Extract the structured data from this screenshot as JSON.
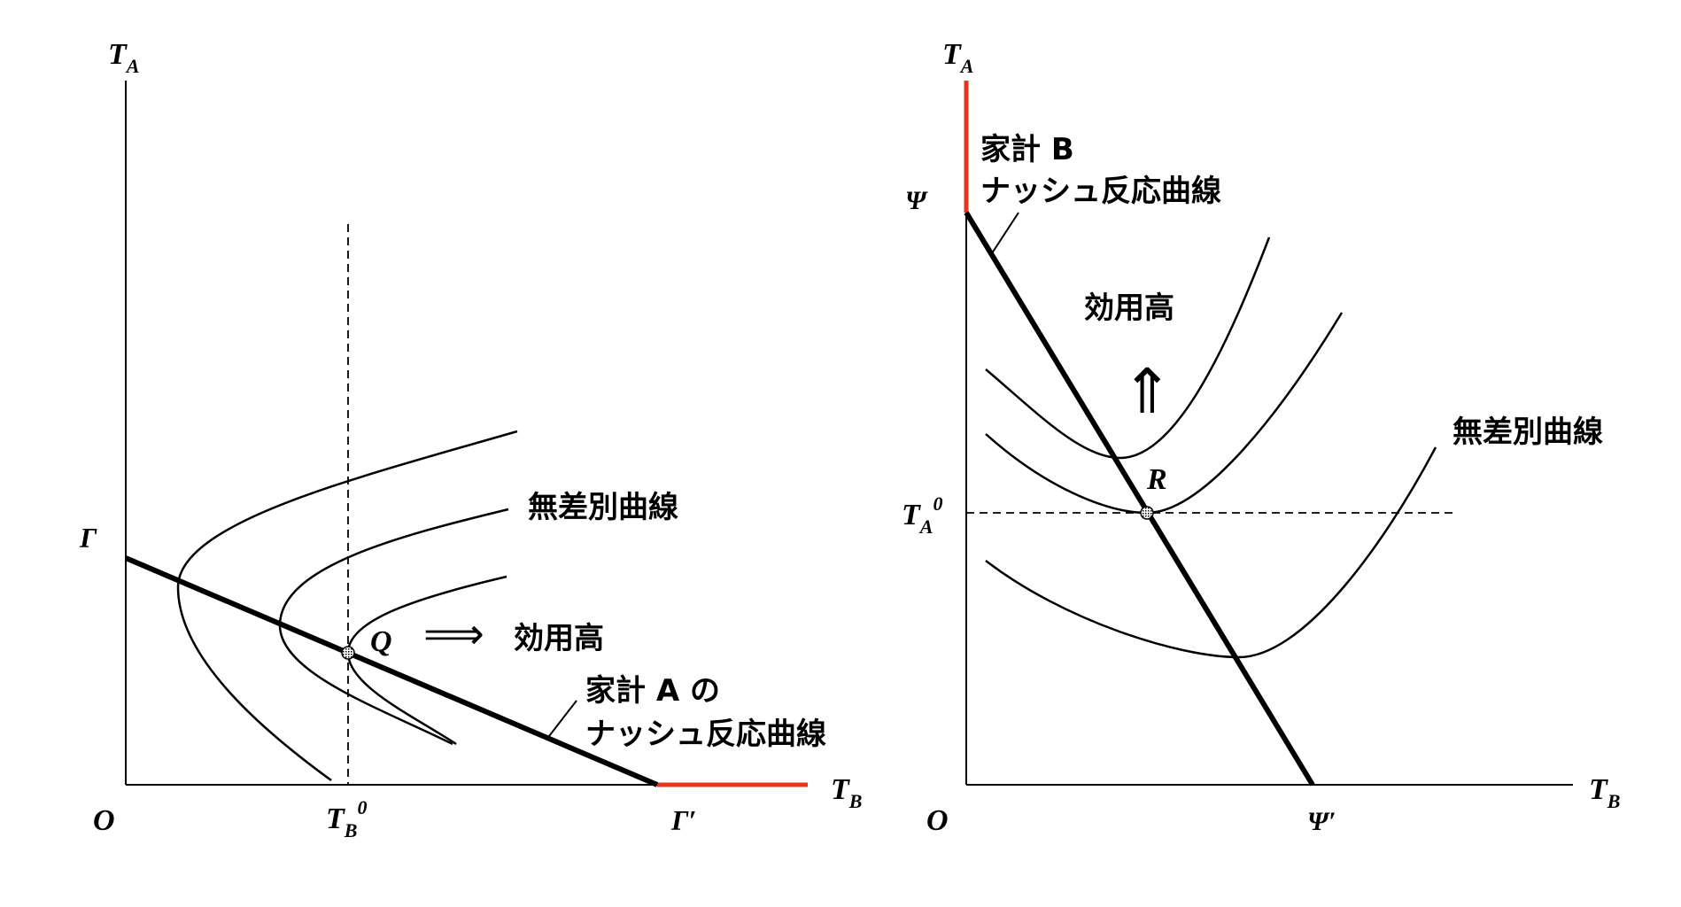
{
  "colors": {
    "boundary_segment": "#e8341c",
    "lines": "#000000"
  },
  "left_diagram": {
    "y_axis": {
      "main": "T",
      "sub": "A"
    },
    "x_axis": {
      "main": "T",
      "sub": "B"
    },
    "origin": "O",
    "gamma": "Γ",
    "gamma_prime": "Γ′",
    "tb0": {
      "main": "T",
      "sub": "B",
      "sup": "0"
    },
    "point_label": "Q",
    "indifference_label": "無差別曲線",
    "arrow_symbol": "⟹",
    "utility_label": "効用高",
    "reaction_label_line1": "家計 A の",
    "reaction_label_line2": "ナッシュ反応曲線"
  },
  "right_diagram": {
    "y_axis": {
      "main": "T",
      "sub": "A"
    },
    "x_axis": {
      "main": "T",
      "sub": "B"
    },
    "origin": "O",
    "psi": "Ψ",
    "psi_prime": "Ψ′",
    "ta0": {
      "main": "T",
      "sub": "A",
      "sup": "0"
    },
    "point_label": "R",
    "indifference_label": "無差別曲線",
    "arrow_symbol": "⇑",
    "utility_label": "効用高",
    "reaction_label_line1": "家計 B",
    "reaction_label_line2": "ナッシュ反応曲線"
  }
}
